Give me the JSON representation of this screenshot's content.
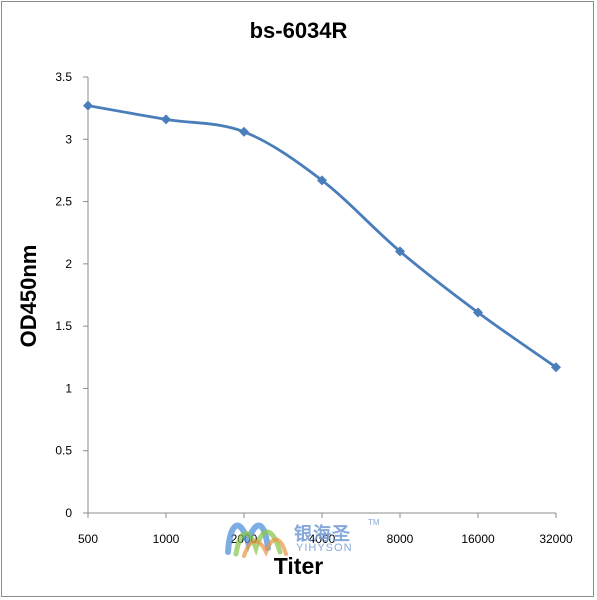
{
  "chart_data": {
    "type": "line",
    "title": "bs-6034R",
    "xlabel": "Titer",
    "ylabel": "OD450nm",
    "categories": [
      "500",
      "1000",
      "2000",
      "4000",
      "8000",
      "16000",
      "32000"
    ],
    "series": [
      {
        "values": [
          3.27,
          3.16,
          3.06,
          2.67,
          2.1,
          1.61,
          1.17
        ]
      }
    ],
    "ylim": [
      0,
      3.5
    ],
    "yticks": [
      "0",
      "0.5",
      "1",
      "1.5",
      "2",
      "2.5",
      "3",
      "3.5"
    ],
    "grid": false,
    "line_color": "#4a7ebb",
    "marker": "diamond"
  },
  "watermark": {
    "text_cn": "银海圣",
    "text_en": "YIHYSON",
    "tm": "TM",
    "colors": [
      "#4a8fd8",
      "#7fc241",
      "#e8892d"
    ]
  }
}
